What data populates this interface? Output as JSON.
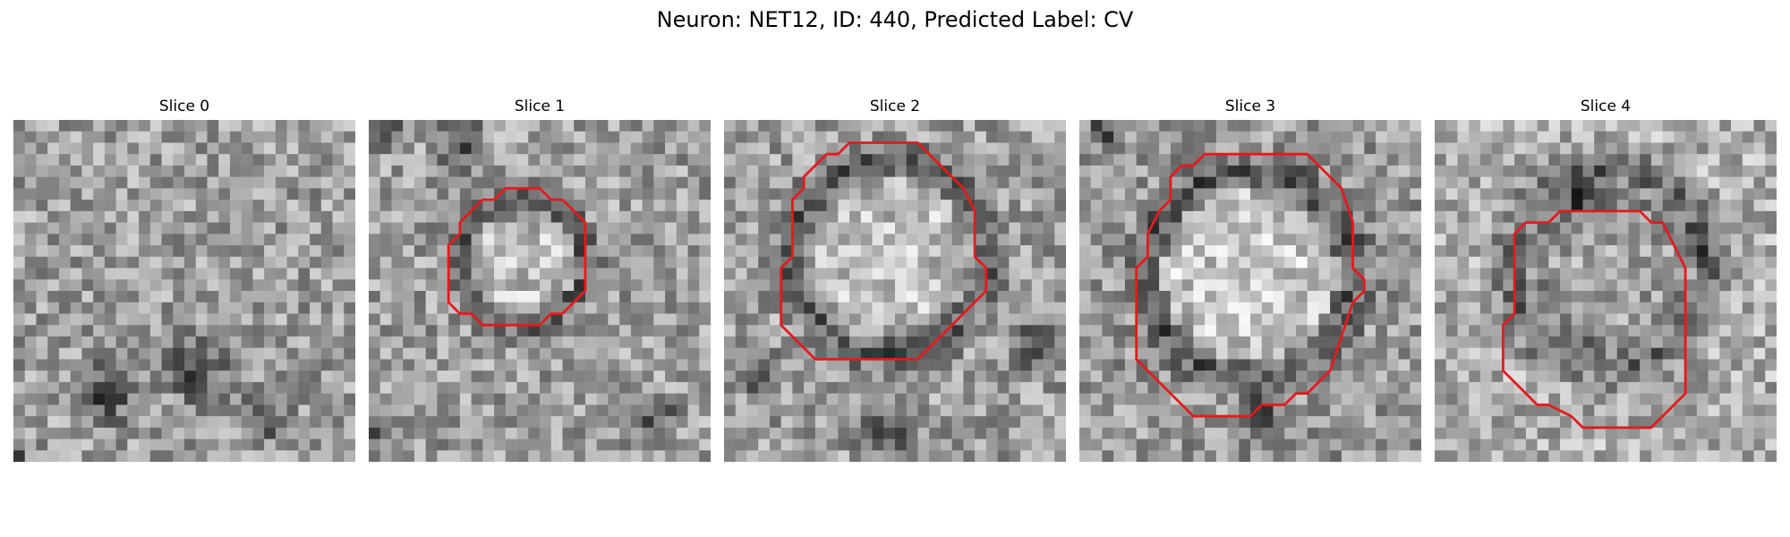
{
  "figure": {
    "title": "Neuron: NET12, ID: 440, Predicted Label: CV",
    "contour_color": "#e41a1c"
  },
  "slices": [
    {
      "title": "Slice 0",
      "has_contour": false
    },
    {
      "title": "Slice 1",
      "has_contour": true
    },
    {
      "title": "Slice 2",
      "has_contour": true
    },
    {
      "title": "Slice 3",
      "has_contour": true
    },
    {
      "title": "Slice 4",
      "has_contour": true
    }
  ]
}
